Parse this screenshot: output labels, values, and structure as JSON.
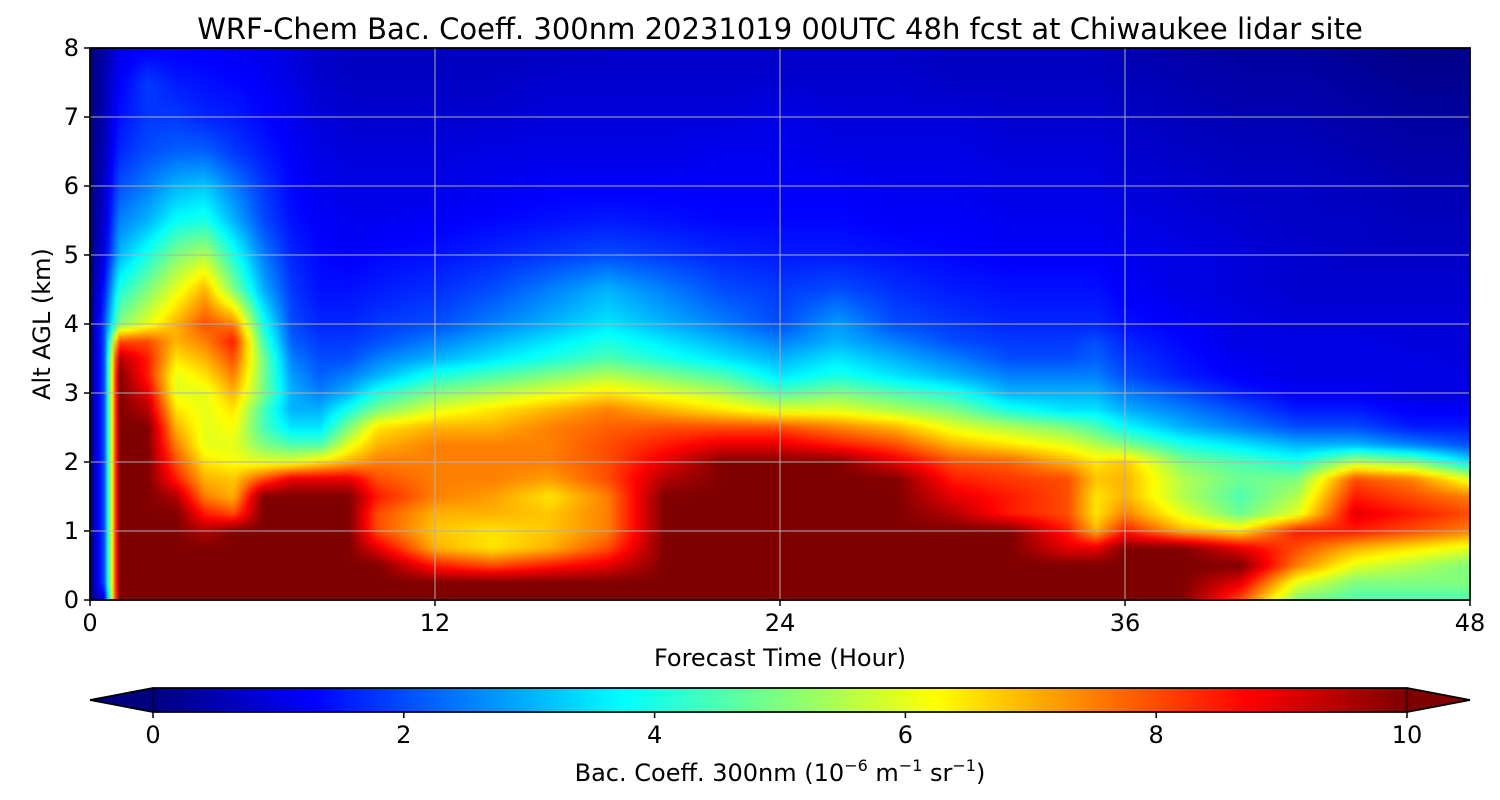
{
  "chart_data": {
    "type": "heatmap",
    "title": "WRF-Chem Bac. Coeff. 300nm  20231019 00UTC 48h fcst at Chiwaukee lidar site",
    "xlabel": "Forecast Time (Hour)",
    "ylabel": "Alt AGL (km)",
    "xlim": [
      0,
      48
    ],
    "ylim": [
      0,
      8
    ],
    "xticks": [
      "0",
      "12",
      "24",
      "36",
      "48"
    ],
    "yticks": [
      "0",
      "1",
      "2",
      "3",
      "4",
      "5",
      "6",
      "7",
      "8"
    ],
    "grid": true,
    "colormap": "jet",
    "colorbar": {
      "orientation": "horizontal",
      "position": "bottom",
      "range": [
        0,
        10
      ],
      "extend": "both",
      "ticks": [
        "0",
        "2",
        "4",
        "6",
        "8",
        "10"
      ],
      "label_main": "Bac. Coeff. 300nm  (10",
      "label_exp1": "−6",
      "label_mid": " m",
      "label_exp2": "−1",
      "label_sr": " sr",
      "label_exp3": "−1",
      "label_close": ")"
    },
    "x": [
      0,
      0.5,
      1,
      2,
      3,
      4,
      5,
      6,
      7,
      8,
      9,
      10,
      12,
      14,
      16,
      18,
      20,
      22,
      24,
      26,
      28,
      30,
      32,
      34,
      35,
      36,
      38,
      40,
      42,
      44,
      46,
      48
    ],
    "y": [
      0,
      0.25,
      0.5,
      0.75,
      1,
      1.25,
      1.5,
      1.75,
      2,
      2.25,
      2.5,
      2.75,
      3,
      3.25,
      3.5,
      3.75,
      4,
      4.5,
      5,
      5.5,
      6,
      6.5,
      7,
      7.5,
      8
    ],
    "z": [
      [
        0,
        1,
        10,
        10,
        10,
        10,
        10,
        10,
        10,
        10,
        10,
        10,
        10,
        10,
        10,
        10,
        10,
        10,
        10,
        10,
        10,
        10,
        10,
        10,
        10,
        10,
        10,
        8,
        5,
        4.5,
        4.5,
        4.5
      ],
      [
        0,
        2,
        10,
        10,
        10,
        10,
        10,
        10,
        10,
        10,
        10,
        10,
        10,
        10,
        10,
        10,
        10,
        10,
        10,
        10,
        10,
        10,
        10,
        10,
        10,
        10,
        10,
        9,
        6,
        5,
        5,
        5
      ],
      [
        0,
        2,
        10,
        10,
        10,
        10,
        10,
        10,
        10,
        10,
        10,
        10,
        8.5,
        8,
        8.5,
        9,
        10,
        10,
        10,
        10,
        10,
        10,
        10,
        10,
        10,
        10,
        10,
        10,
        7.5,
        6,
        5.5,
        5
      ],
      [
        0,
        2,
        10,
        10,
        10,
        10,
        10,
        10,
        10,
        10,
        10,
        9,
        7,
        6.5,
        7,
        8,
        10,
        10,
        10,
        10,
        10,
        10,
        10,
        9,
        9,
        10,
        10,
        9,
        8,
        7,
        6.5,
        6
      ],
      [
        0,
        2,
        10,
        10,
        10,
        9.5,
        10,
        10,
        10,
        10,
        10,
        8,
        6.8,
        6.5,
        6.8,
        7.5,
        10,
        10,
        10,
        10,
        10,
        10,
        10,
        8.5,
        7,
        8.5,
        7,
        6.5,
        8.5,
        8.5,
        8,
        7.5
      ],
      [
        0,
        2,
        10,
        10,
        10,
        8.5,
        8,
        10,
        10,
        10,
        10,
        8,
        7,
        7,
        6.8,
        7.5,
        10,
        10,
        10,
        10,
        10,
        9.5,
        8.5,
        8,
        6.5,
        7.5,
        6,
        4.8,
        6,
        9,
        8.5,
        8
      ],
      [
        0,
        2,
        10,
        10,
        9.5,
        7.5,
        7,
        10,
        10,
        10,
        10,
        8.5,
        7.5,
        7.2,
        6.5,
        7.5,
        10,
        10,
        10,
        10,
        10,
        9,
        8.5,
        8,
        6.5,
        7,
        5.5,
        4.5,
        5.5,
        8.5,
        8,
        7.5
      ],
      [
        0,
        2,
        10,
        10,
        8.5,
        7,
        6.8,
        8,
        9,
        9,
        9,
        8,
        7.5,
        7.5,
        7.2,
        8,
        9.5,
        10,
        10,
        10,
        10,
        8.5,
        8.2,
        8,
        6.8,
        7,
        5.5,
        4.8,
        5,
        8,
        7.5,
        6
      ],
      [
        0,
        2,
        10,
        10,
        8,
        6.5,
        6.2,
        6,
        6,
        6.5,
        7,
        7.5,
        7.5,
        7.5,
        7.5,
        8,
        9,
        10,
        10,
        10,
        9,
        8,
        7.8,
        7,
        6.5,
        6.8,
        5,
        4.5,
        4,
        5.5,
        5,
        3.5
      ],
      [
        0,
        2,
        10,
        10,
        7.5,
        6,
        6,
        5,
        4.5,
        4.5,
        6,
        7,
        7.5,
        7.5,
        7.5,
        8,
        8.5,
        9,
        9,
        8.5,
        8,
        7,
        6.5,
        6,
        5.5,
        5,
        4,
        3.5,
        3,
        3,
        2.5,
        2
      ],
      [
        0,
        2,
        10,
        10,
        7,
        6,
        6.2,
        4.5,
        3.5,
        3.5,
        5,
        6.5,
        7,
        7,
        7.5,
        7.8,
        8,
        8,
        8,
        7.5,
        7,
        6,
        5.5,
        5,
        4.5,
        3.8,
        3,
        2.5,
        2,
        2,
        1.5,
        1.5
      ],
      [
        0,
        2,
        10,
        9.5,
        6.5,
        6,
        6.5,
        4.5,
        3,
        3,
        4,
        5,
        6,
        6.5,
        7,
        7.5,
        7,
        6.5,
        6,
        6,
        5.5,
        5,
        4,
        3.5,
        3.5,
        3,
        2.5,
        2,
        1.5,
        1.5,
        1.2,
        1.2
      ],
      [
        0,
        2,
        10,
        9,
        6,
        6,
        7,
        5,
        3,
        2.5,
        3,
        4,
        5,
        5.5,
        6,
        6.5,
        6,
        5.5,
        4.5,
        5,
        4.5,
        4,
        3,
        3,
        3,
        2.5,
        2,
        1.5,
        1.2,
        1.2,
        1,
        1
      ],
      [
        0,
        2,
        10,
        8.5,
        6,
        6.5,
        7.5,
        5,
        2.8,
        2.2,
        2.5,
        3,
        4,
        4.5,
        5,
        5.5,
        5,
        4.5,
        3.5,
        4,
        3.5,
        3,
        2.5,
        2.5,
        2.5,
        2,
        1.5,
        1.2,
        1,
        1,
        1,
        1
      ],
      [
        0,
        2,
        9.5,
        8.5,
        6.5,
        7,
        8,
        5,
        2.5,
        2,
        2,
        2.5,
        3,
        3.5,
        4,
        4.5,
        4,
        3.5,
        3,
        3.5,
        3,
        2.5,
        2,
        2,
        2.2,
        1.8,
        1.4,
        1.1,
        1,
        1,
        1,
        0.9
      ],
      [
        0,
        2,
        8,
        8,
        7,
        7.5,
        8.5,
        4.5,
        2.2,
        1.8,
        1.8,
        2,
        2.5,
        3,
        3.5,
        4,
        3.5,
        3,
        2.5,
        3,
        2.5,
        2,
        1.8,
        1.8,
        2,
        1.6,
        1.3,
        1,
        1,
        1,
        0.9,
        0.9
      ],
      [
        0,
        2,
        5,
        6,
        7,
        8,
        7.5,
        4,
        2,
        1.6,
        1.6,
        1.8,
        2,
        2.5,
        3,
        3.5,
        3,
        2.5,
        2,
        2.8,
        2,
        1.8,
        1.6,
        1.6,
        1.6,
        1.4,
        1.2,
        1,
        0.9,
        0.9,
        0.9,
        0.9
      ],
      [
        0,
        1.5,
        4,
        5,
        6,
        7,
        5,
        3,
        1.8,
        1.4,
        1.4,
        1.5,
        1.7,
        2,
        2.5,
        3,
        2.5,
        2,
        1.8,
        2,
        1.7,
        1.5,
        1.4,
        1.4,
        1.4,
        1.2,
        1,
        0.9,
        0.8,
        0.8,
        0.8,
        0.8
      ],
      [
        0,
        1,
        3,
        4,
        5,
        5.5,
        4,
        2.5,
        1.6,
        1.3,
        1.2,
        1.3,
        1.4,
        1.6,
        1.8,
        2,
        1.8,
        1.6,
        1.5,
        1.5,
        1.4,
        1.3,
        1.2,
        1.2,
        1.2,
        1.1,
        1,
        0.9,
        0.8,
        0.7,
        0.7,
        0.7
      ],
      [
        0,
        0.8,
        2.5,
        3,
        3.8,
        4,
        3,
        2,
        1.4,
        1.2,
        1.1,
        1.1,
        1.2,
        1.3,
        1.4,
        1.5,
        1.4,
        1.3,
        1.3,
        1.3,
        1.2,
        1.2,
        1.1,
        1.1,
        1.1,
        1,
        0.9,
        0.8,
        0.7,
        0.7,
        0.6,
        0.6
      ],
      [
        0,
        0.7,
        2,
        2.5,
        3,
        3.2,
        2.5,
        1.8,
        1.3,
        1.1,
        1,
        1,
        1,
        1.1,
        1.2,
        1.2,
        1.2,
        1.2,
        1.2,
        1.2,
        1.1,
        1.1,
        1,
        1,
        1,
        0.9,
        0.8,
        0.7,
        0.7,
        0.6,
        0.5,
        0.5
      ],
      [
        0,
        0.6,
        1.6,
        2,
        2.2,
        2.2,
        1.8,
        1.5,
        1.2,
        1,
        0.9,
        0.9,
        0.9,
        1,
        1,
        1,
        1,
        1.1,
        1.1,
        1,
        1,
        1,
        0.9,
        0.9,
        0.9,
        0.8,
        0.7,
        0.6,
        0.6,
        0.5,
        0.4,
        0.4
      ],
      [
        0,
        0.5,
        1.4,
        1.8,
        1.8,
        1.6,
        1.5,
        1.3,
        1.1,
        0.9,
        0.8,
        0.8,
        0.8,
        0.8,
        0.9,
        0.9,
        0.9,
        0.9,
        1,
        0.9,
        0.9,
        0.9,
        0.8,
        0.8,
        0.8,
        0.7,
        0.6,
        0.5,
        0.5,
        0.4,
        0.3,
        0.3
      ],
      [
        0,
        0.5,
        1.2,
        1.8,
        1.5,
        1.4,
        1.3,
        1.2,
        1,
        0.8,
        0.7,
        0.7,
        0.7,
        0.7,
        0.8,
        0.8,
        0.8,
        0.8,
        0.8,
        0.8,
        0.8,
        0.7,
        0.7,
        0.7,
        0.7,
        0.6,
        0.5,
        0.4,
        0.4,
        0.3,
        0.2,
        0.2
      ],
      [
        0,
        0.4,
        1,
        1.2,
        1.2,
        1.2,
        1.1,
        1,
        0.9,
        0.7,
        0.6,
        0.6,
        0.6,
        0.6,
        0.6,
        0.7,
        0.7,
        0.7,
        0.7,
        0.7,
        0.7,
        0.6,
        0.6,
        0.6,
        0.6,
        0.5,
        0.4,
        0.3,
        0.3,
        0.2,
        0.1,
        0.1
      ]
    ]
  }
}
